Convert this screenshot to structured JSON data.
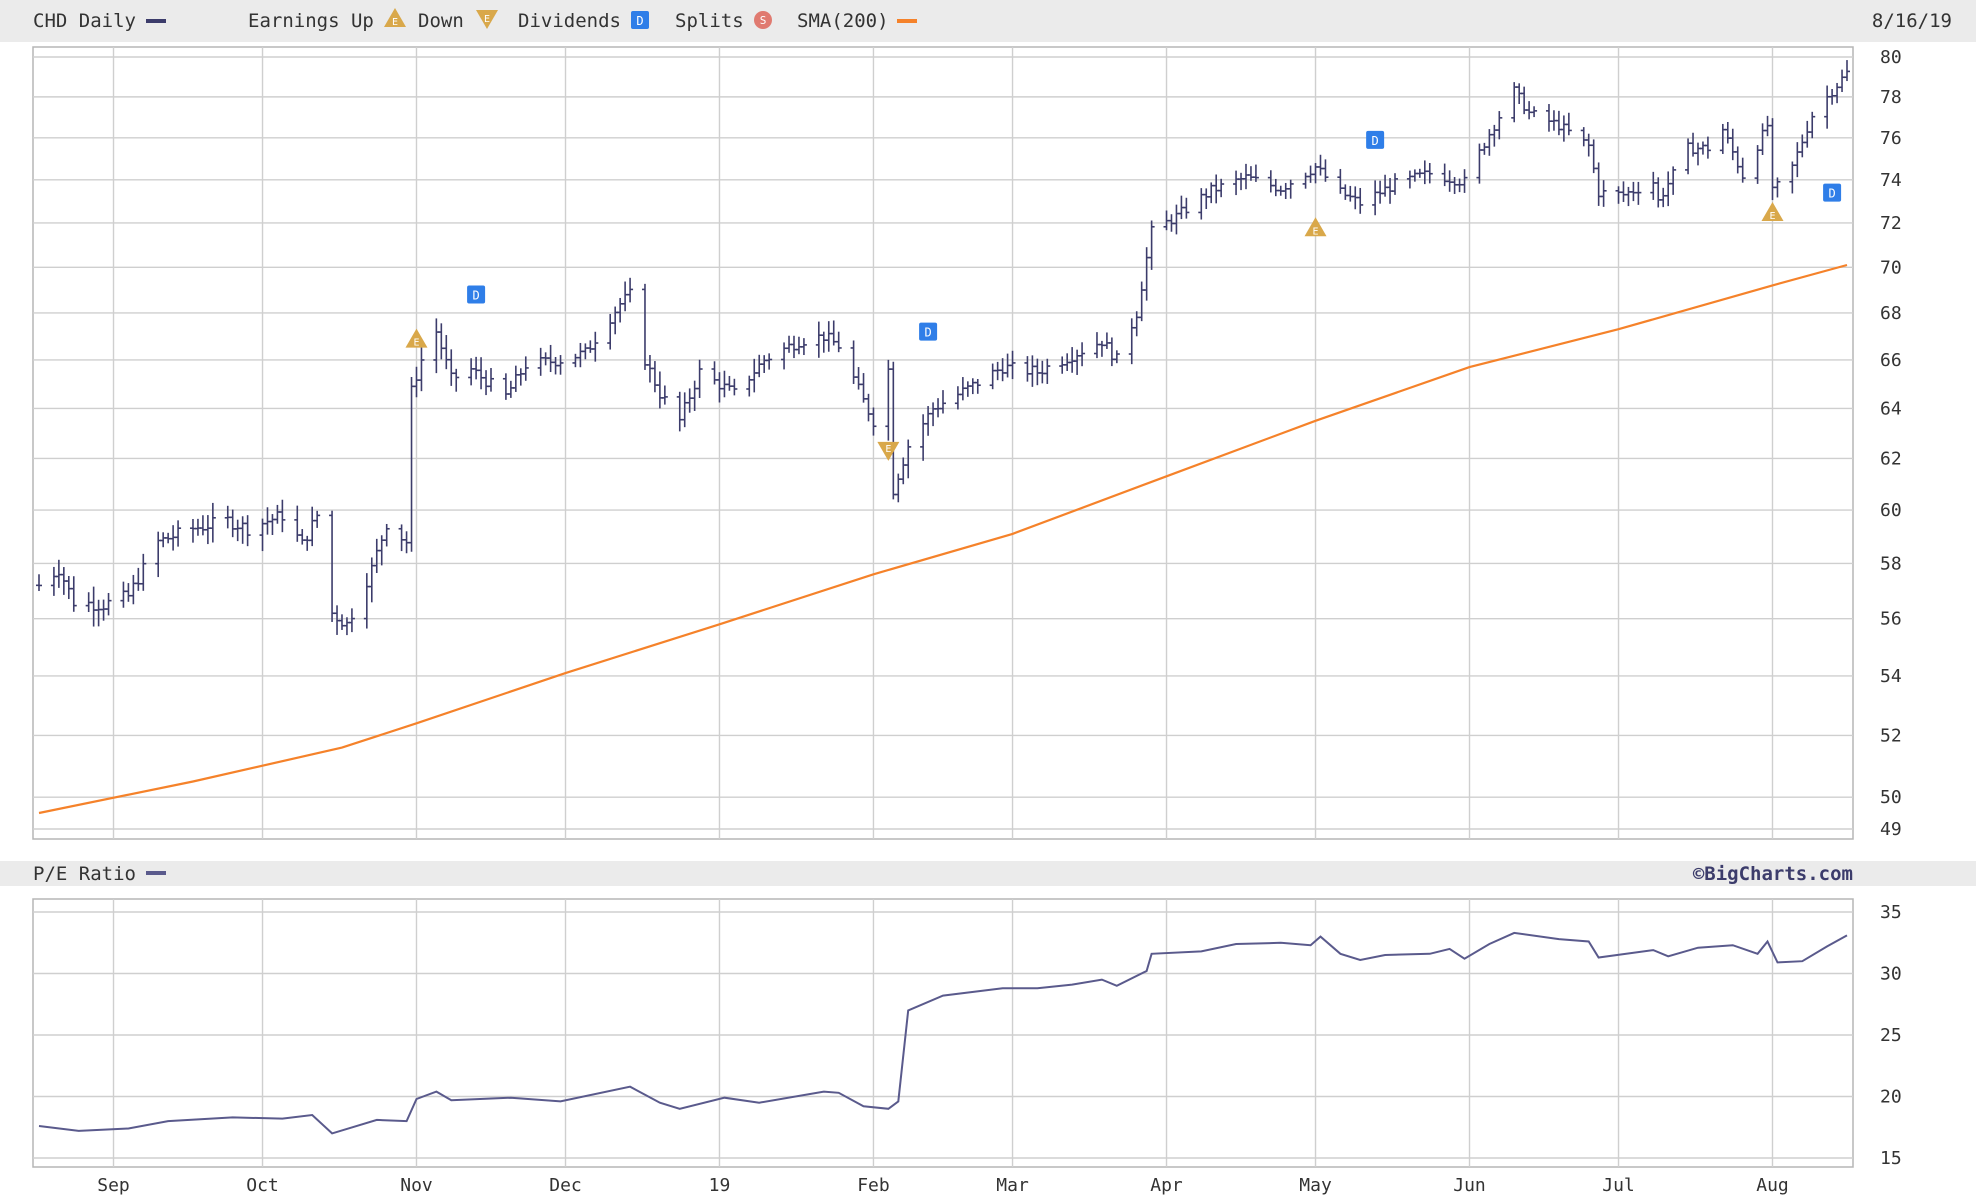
{
  "header": {
    "symbol_label": "CHD Daily",
    "earnings_up_label": "Earnings Up",
    "earnings_down_label": "Down",
    "dividends_label": "Dividends",
    "splits_label": "Splits",
    "sma_label": "SMA(200)",
    "date_label": "8/16/19"
  },
  "lower_header": {
    "pe_label": "P/E Ratio",
    "brand": "©BigCharts.com"
  },
  "colors": {
    "price_bars": "#3c3c6b",
    "sma": "#f5822a",
    "pe_line": "#5a5a8c",
    "grid": "#cfcfcf",
    "header_band": "#ebebeb",
    "earnings_marker": "#d9a84a",
    "dividend_marker": "#2f7ee8",
    "split_marker": "#e07a70"
  },
  "chart_data": [
    {
      "type": "ohlc",
      "title": "CHD Daily",
      "x_ticks": [
        "Sep",
        "Oct",
        "Nov",
        "Dec",
        "19",
        "Feb",
        "Mar",
        "Apr",
        "May",
        "Jun",
        "Jul",
        "Aug"
      ],
      "x_tick_dates": [
        "2018-09-01",
        "2018-10-01",
        "2018-11-01",
        "2018-12-01",
        "2019-01-01",
        "2019-02-01",
        "2019-03-01",
        "2019-04-01",
        "2019-05-01",
        "2019-06-01",
        "2019-07-01",
        "2019-08-01"
      ],
      "x_range": [
        "2018-08-17",
        "2019-08-16"
      ],
      "y_ticks": [
        49,
        50,
        52,
        54,
        56,
        58,
        60,
        62,
        64,
        66,
        68,
        70,
        72,
        74,
        76,
        78,
        80
      ],
      "y_scale": "log",
      "ylim": [
        49,
        80
      ],
      "grid": true,
      "legend_position": "top",
      "price_anchors": [
        [
          "2018-08-17",
          57.2
        ],
        [
          "2018-08-21",
          57.8
        ],
        [
          "2018-08-24",
          56.6
        ],
        [
          "2018-08-30",
          56.5
        ],
        [
          "2018-09-04",
          56.8
        ],
        [
          "2018-09-10",
          58.8
        ],
        [
          "2018-09-17",
          59.3
        ],
        [
          "2018-09-24",
          59.6
        ],
        [
          "2018-09-28",
          59.3
        ],
        [
          "2018-10-05",
          59.8
        ],
        [
          "2018-10-09",
          58.7
        ],
        [
          "2018-10-12",
          59.8
        ],
        [
          "2018-10-15",
          56.2
        ],
        [
          "2018-10-18",
          55.8
        ],
        [
          "2018-10-23",
          57.8
        ],
        [
          "2018-10-26",
          59.5
        ],
        [
          "2018-10-30",
          58.8
        ],
        [
          "2018-10-31",
          64.7
        ],
        [
          "2018-11-02",
          66.0
        ],
        [
          "2018-11-05",
          67.2
        ],
        [
          "2018-11-08",
          65.2
        ],
        [
          "2018-11-12",
          65.6
        ],
        [
          "2018-11-19",
          64.5
        ],
        [
          "2018-11-23",
          65.8
        ],
        [
          "2018-11-30",
          66.0
        ],
        [
          "2018-12-05",
          66.3
        ],
        [
          "2018-12-12",
          68.4
        ],
        [
          "2018-12-14",
          68.8
        ],
        [
          "2018-12-17",
          66.0
        ],
        [
          "2018-12-20",
          64.6
        ],
        [
          "2018-12-24",
          63.5
        ],
        [
          "2018-12-28",
          65.5
        ],
        [
          "2019-01-04",
          64.6
        ],
        [
          "2019-01-10",
          66.0
        ],
        [
          "2019-01-17",
          66.8
        ],
        [
          "2019-01-22",
          67.0
        ],
        [
          "2019-01-25",
          66.6
        ],
        [
          "2019-01-30",
          64.3
        ],
        [
          "2019-02-01",
          63.5
        ],
        [
          "2019-02-04",
          65.6
        ],
        [
          "2019-02-05",
          60.8
        ],
        [
          "2019-02-08",
          62.5
        ],
        [
          "2019-02-13",
          64.0
        ],
        [
          "2019-02-20",
          64.8
        ],
        [
          "2019-02-27",
          65.7
        ],
        [
          "2019-03-06",
          65.5
        ],
        [
          "2019-03-13",
          66.2
        ],
        [
          "2019-03-19",
          66.8
        ],
        [
          "2019-03-22",
          66.0
        ],
        [
          "2019-03-26",
          68.0
        ],
        [
          "2019-03-29",
          71.6
        ],
        [
          "2019-04-03",
          72.3
        ],
        [
          "2019-04-10",
          73.5
        ],
        [
          "2019-04-17",
          74.1
        ],
        [
          "2019-04-24",
          73.6
        ],
        [
          "2019-05-01",
          74.6
        ],
        [
          "2019-05-06",
          73.4
        ],
        [
          "2019-05-10",
          72.9
        ],
        [
          "2019-05-17",
          73.8
        ],
        [
          "2019-05-24",
          74.3
        ],
        [
          "2019-05-31",
          73.9
        ],
        [
          "2019-06-05",
          76.2
        ],
        [
          "2019-06-10",
          78.3
        ],
        [
          "2019-06-13",
          77.2
        ],
        [
          "2019-06-19",
          76.6
        ],
        [
          "2019-06-25",
          75.6
        ],
        [
          "2019-06-27",
          73.4
        ],
        [
          "2019-07-02",
          73.3
        ],
        [
          "2019-07-08",
          73.9
        ],
        [
          "2019-07-09",
          73.0
        ],
        [
          "2019-07-15",
          75.5
        ],
        [
          "2019-07-19",
          75.5
        ],
        [
          "2019-07-22",
          76.4
        ],
        [
          "2019-07-26",
          74.2
        ],
        [
          "2019-07-31",
          76.6
        ],
        [
          "2019-08-01",
          73.4
        ],
        [
          "2019-08-05",
          74.6
        ],
        [
          "2019-08-09",
          77.1
        ],
        [
          "2019-08-13",
          78.3
        ],
        [
          "2019-08-16",
          79.2
        ]
      ],
      "series": [
        {
          "name": "SMA(200)",
          "points": [
            [
              "2018-08-17",
              49.5
            ],
            [
              "2018-09-17",
              50.5
            ],
            [
              "2018-10-17",
              51.6
            ],
            [
              "2018-11-01",
              52.4
            ],
            [
              "2018-12-01",
              54.1
            ],
            [
              "2019-01-01",
              55.8
            ],
            [
              "2019-02-01",
              57.6
            ],
            [
              "2019-03-01",
              59.1
            ],
            [
              "2019-04-01",
              61.3
            ],
            [
              "2019-05-01",
              63.5
            ],
            [
              "2019-06-01",
              65.7
            ],
            [
              "2019-07-01",
              67.3
            ],
            [
              "2019-08-01",
              69.2
            ],
            [
              "2019-08-16",
              70.1
            ]
          ]
        }
      ],
      "events": [
        {
          "type": "earnings_up",
          "date": "2018-11-01",
          "value": 66.9
        },
        {
          "type": "dividend",
          "date": "2018-11-13",
          "value": 68.8
        },
        {
          "type": "earnings_down",
          "date": "2019-02-04",
          "value": 62.3
        },
        {
          "type": "dividend",
          "date": "2019-02-12",
          "value": 67.2
        },
        {
          "type": "earnings_up",
          "date": "2019-05-01",
          "value": 71.8
        },
        {
          "type": "dividend",
          "date": "2019-05-13",
          "value": 75.9
        },
        {
          "type": "earnings_up",
          "date": "2019-08-01",
          "value": 72.5
        },
        {
          "type": "dividend",
          "date": "2019-08-13",
          "value": 73.4
        }
      ]
    },
    {
      "type": "line",
      "title": "P/E Ratio",
      "y_ticks": [
        15,
        20,
        25,
        30,
        35
      ],
      "ylim": [
        15,
        35
      ],
      "grid": true,
      "series": [
        {
          "name": "P/E Ratio",
          "points": [
            [
              "2018-08-17",
              17.6
            ],
            [
              "2018-08-25",
              17.2
            ],
            [
              "2018-09-04",
              17.4
            ],
            [
              "2018-09-12",
              18.0
            ],
            [
              "2018-09-25",
              18.3
            ],
            [
              "2018-10-05",
              18.2
            ],
            [
              "2018-10-11",
              18.5
            ],
            [
              "2018-10-15",
              17.0
            ],
            [
              "2018-10-24",
              18.1
            ],
            [
              "2018-10-30",
              18.0
            ],
            [
              "2018-11-01",
              19.8
            ],
            [
              "2018-11-05",
              20.4
            ],
            [
              "2018-11-08",
              19.7
            ],
            [
              "2018-11-20",
              19.9
            ],
            [
              "2018-11-30",
              19.6
            ],
            [
              "2018-12-14",
              20.8
            ],
            [
              "2018-12-20",
              19.5
            ],
            [
              "2018-12-24",
              19.0
            ],
            [
              "2019-01-02",
              19.9
            ],
            [
              "2019-01-09",
              19.5
            ],
            [
              "2019-01-22",
              20.4
            ],
            [
              "2019-01-25",
              20.3
            ],
            [
              "2019-01-30",
              19.2
            ],
            [
              "2019-02-04",
              19.0
            ],
            [
              "2019-02-06",
              19.6
            ],
            [
              "2019-02-08",
              27.0
            ],
            [
              "2019-02-15",
              28.2
            ],
            [
              "2019-02-27",
              28.8
            ],
            [
              "2019-03-06",
              28.8
            ],
            [
              "2019-03-13",
              29.1
            ],
            [
              "2019-03-19",
              29.5
            ],
            [
              "2019-03-22",
              29.0
            ],
            [
              "2019-03-28",
              30.2
            ],
            [
              "2019-03-29",
              31.6
            ],
            [
              "2019-04-08",
              31.8
            ],
            [
              "2019-04-15",
              32.4
            ],
            [
              "2019-04-24",
              32.5
            ],
            [
              "2019-04-30",
              32.3
            ],
            [
              "2019-05-02",
              33.0
            ],
            [
              "2019-05-06",
              31.6
            ],
            [
              "2019-05-10",
              31.1
            ],
            [
              "2019-05-15",
              31.5
            ],
            [
              "2019-05-24",
              31.6
            ],
            [
              "2019-05-28",
              32.0
            ],
            [
              "2019-05-31",
              31.2
            ],
            [
              "2019-06-05",
              32.4
            ],
            [
              "2019-06-10",
              33.3
            ],
            [
              "2019-06-19",
              32.8
            ],
            [
              "2019-06-25",
              32.6
            ],
            [
              "2019-06-27",
              31.3
            ],
            [
              "2019-07-08",
              31.9
            ],
            [
              "2019-07-11",
              31.4
            ],
            [
              "2019-07-17",
              32.1
            ],
            [
              "2019-07-24",
              32.3
            ],
            [
              "2019-07-29",
              31.6
            ],
            [
              "2019-07-31",
              32.6
            ],
            [
              "2019-08-02",
              30.9
            ],
            [
              "2019-08-07",
              31.0
            ],
            [
              "2019-08-12",
              32.2
            ],
            [
              "2019-08-16",
              33.1
            ]
          ]
        }
      ]
    }
  ]
}
